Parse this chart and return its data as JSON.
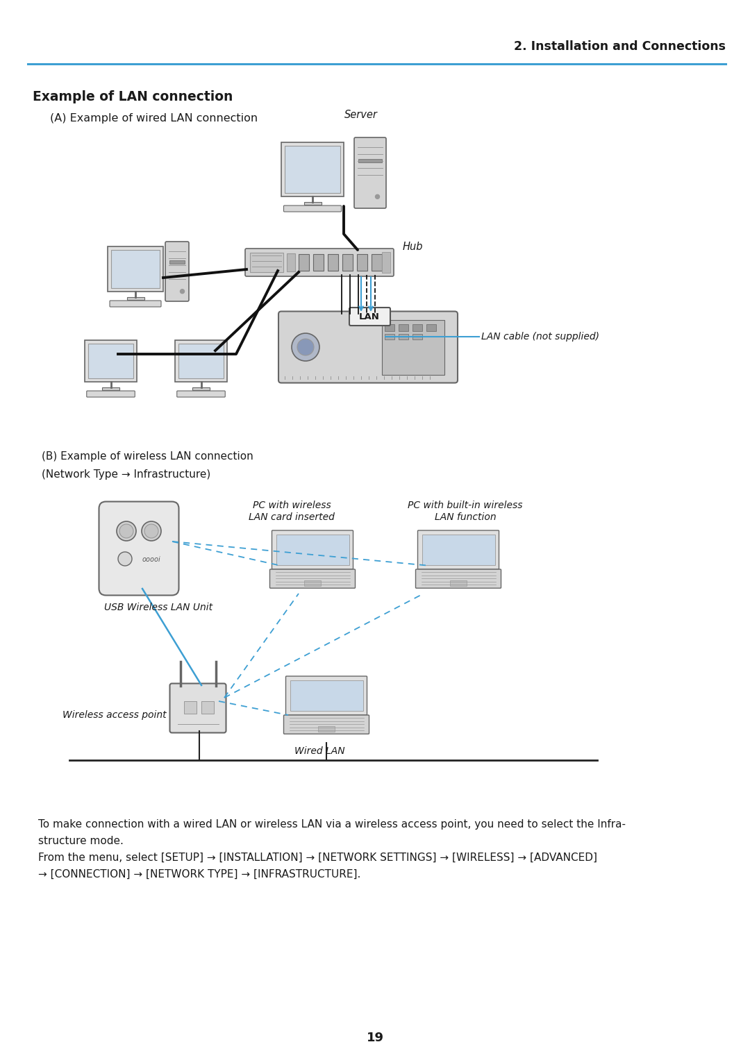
{
  "page_number": "19",
  "header_text": "2. Installation and Connections",
  "header_line_color": "#3d9fd3",
  "section_title": "Example of LAN connection",
  "subsection_a": "(A) Example of wired LAN connection",
  "subsection_b_line1": "(B) Example of wireless LAN connection",
  "subsection_b_line2": "(Network Type → Infrastructure)",
  "label_server": "Server",
  "label_hub": "Hub",
  "label_lan_cable": "LAN cable (not supplied)",
  "label_lan": "LAN",
  "label_usb_wireless": "USB Wireless LAN Unit",
  "label_wireless_ap": "Wireless access point",
  "label_wired_lan": "Wired LAN",
  "label_pc_wireless_card_1": "PC with wireless",
  "label_pc_wireless_card_2": "LAN card inserted",
  "label_pc_builtin_1": "PC with built-in wireless",
  "label_pc_builtin_2": "LAN function",
  "footer_text1": "To make connection with a wired LAN or wireless LAN via a wireless access point, you need to select the Infra-",
  "footer_text2": "structure mode.",
  "footer_text3": "From the menu, select [SETUP] → [INSTALLATION] → [NETWORK SETTINGS] → [WIRELESS] → [ADVANCED]",
  "footer_text4": "→ [CONNECTION] → [NETWORK TYPE] → [INFRASTRUCTURE].",
  "bg_color": "#ffffff",
  "text_color": "#1a1a1a",
  "line_color_blue": "#3d9fd3",
  "line_color_black": "#111111",
  "line_color_dashed": "#3d9fd3",
  "gray_dark": "#666666",
  "gray_mid": "#999999",
  "gray_light": "#cccccc",
  "gray_body": "#d4d4d4",
  "gray_body2": "#e0e0e0"
}
